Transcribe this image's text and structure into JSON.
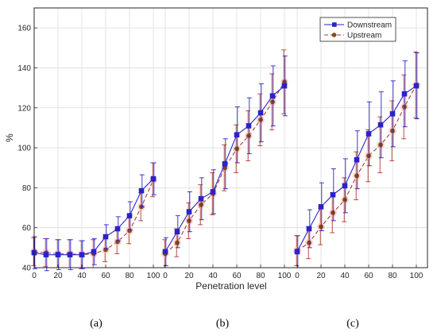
{
  "chart_data": {
    "type": "line",
    "ylabel": "%",
    "xlabel": "Penetration level",
    "ylim": [
      40,
      170
    ],
    "yticks": [
      40,
      60,
      80,
      100,
      120,
      140,
      160
    ],
    "grid": true,
    "legend_position": "top-right",
    "colors": {
      "downstream": "#2b22c8",
      "upstream": "#b03a2e",
      "up_marker": "#8a4a0f"
    },
    "legend": [
      "Downstream",
      "Upstream"
    ],
    "panels": [
      {
        "label": "(a)",
        "x": [
          0,
          10,
          20,
          30,
          40,
          50,
          60,
          70,
          80,
          90,
          100
        ],
        "xticks": [
          0,
          20,
          40,
          60,
          80,
          100
        ],
        "series": [
          {
            "name": "Downstream",
            "values": [
              47.5,
              46.5,
              46.5,
              46.5,
              46.5,
              48,
              55.5,
              59.5,
              66,
              78.5,
              84.5
            ],
            "err": [
              8,
              8,
              7.5,
              7.5,
              7,
              6.5,
              6,
              6,
              7,
              8,
              8
            ]
          },
          {
            "name": "Upstream",
            "values": [
              48,
              47.5,
              47,
              47,
              46.5,
              47,
              49,
              53,
              58.5,
              70.5,
              84
            ],
            "err": [
              7,
              7,
              7,
              7,
              7,
              7,
              6,
              6,
              6.5,
              7,
              8.5
            ]
          }
        ]
      },
      {
        "label": "(b)",
        "x": [
          0,
          10,
          20,
          30,
          40,
          50,
          60,
          70,
          80,
          90,
          100
        ],
        "xticks": [
          0,
          20,
          40,
          60,
          80,
          100
        ],
        "series": [
          {
            "name": "Downstream",
            "values": [
              48,
              58,
              68,
              74.5,
              78,
              92,
              106.5,
              111,
              117.5,
              126,
              131
            ],
            "err": [
              7,
              8,
              10,
              10.5,
              11,
              12.5,
              14,
              14,
              14.5,
              15,
              15
            ]
          },
          {
            "name": "Upstream",
            "values": [
              47,
              52.5,
              63.5,
              71.5,
              77,
              90,
              99.5,
              106,
              114,
              123,
              133
            ],
            "err": [
              7,
              7,
              9,
              10,
              10.5,
              11.5,
              12,
              12.5,
              13,
              14,
              16
            ]
          }
        ]
      },
      {
        "label": "(c)",
        "x": [
          0,
          10,
          20,
          30,
          40,
          50,
          60,
          70,
          80,
          90,
          100
        ],
        "xticks": [
          0,
          20,
          40,
          60,
          80,
          100
        ],
        "series": [
          {
            "name": "Downstream",
            "values": [
              48,
              59.5,
              70.5,
              76.5,
              81,
              94,
              107,
              111.5,
              117,
              127,
              131
            ],
            "err": [
              8,
              9.5,
              12,
              13,
              13.5,
              14.5,
              16,
              16.5,
              16.5,
              16.5,
              16.5
            ]
          },
          {
            "name": "Upstream",
            "values": [
              48.5,
              52.5,
              60.5,
              67.5,
              74,
              86,
              96,
              101.5,
              108.5,
              120.5,
              131.5
            ],
            "err": [
              7.5,
              8,
              9,
              10,
              11,
              12,
              13,
              14,
              15,
              16,
              16.5
            ]
          }
        ]
      }
    ]
  }
}
